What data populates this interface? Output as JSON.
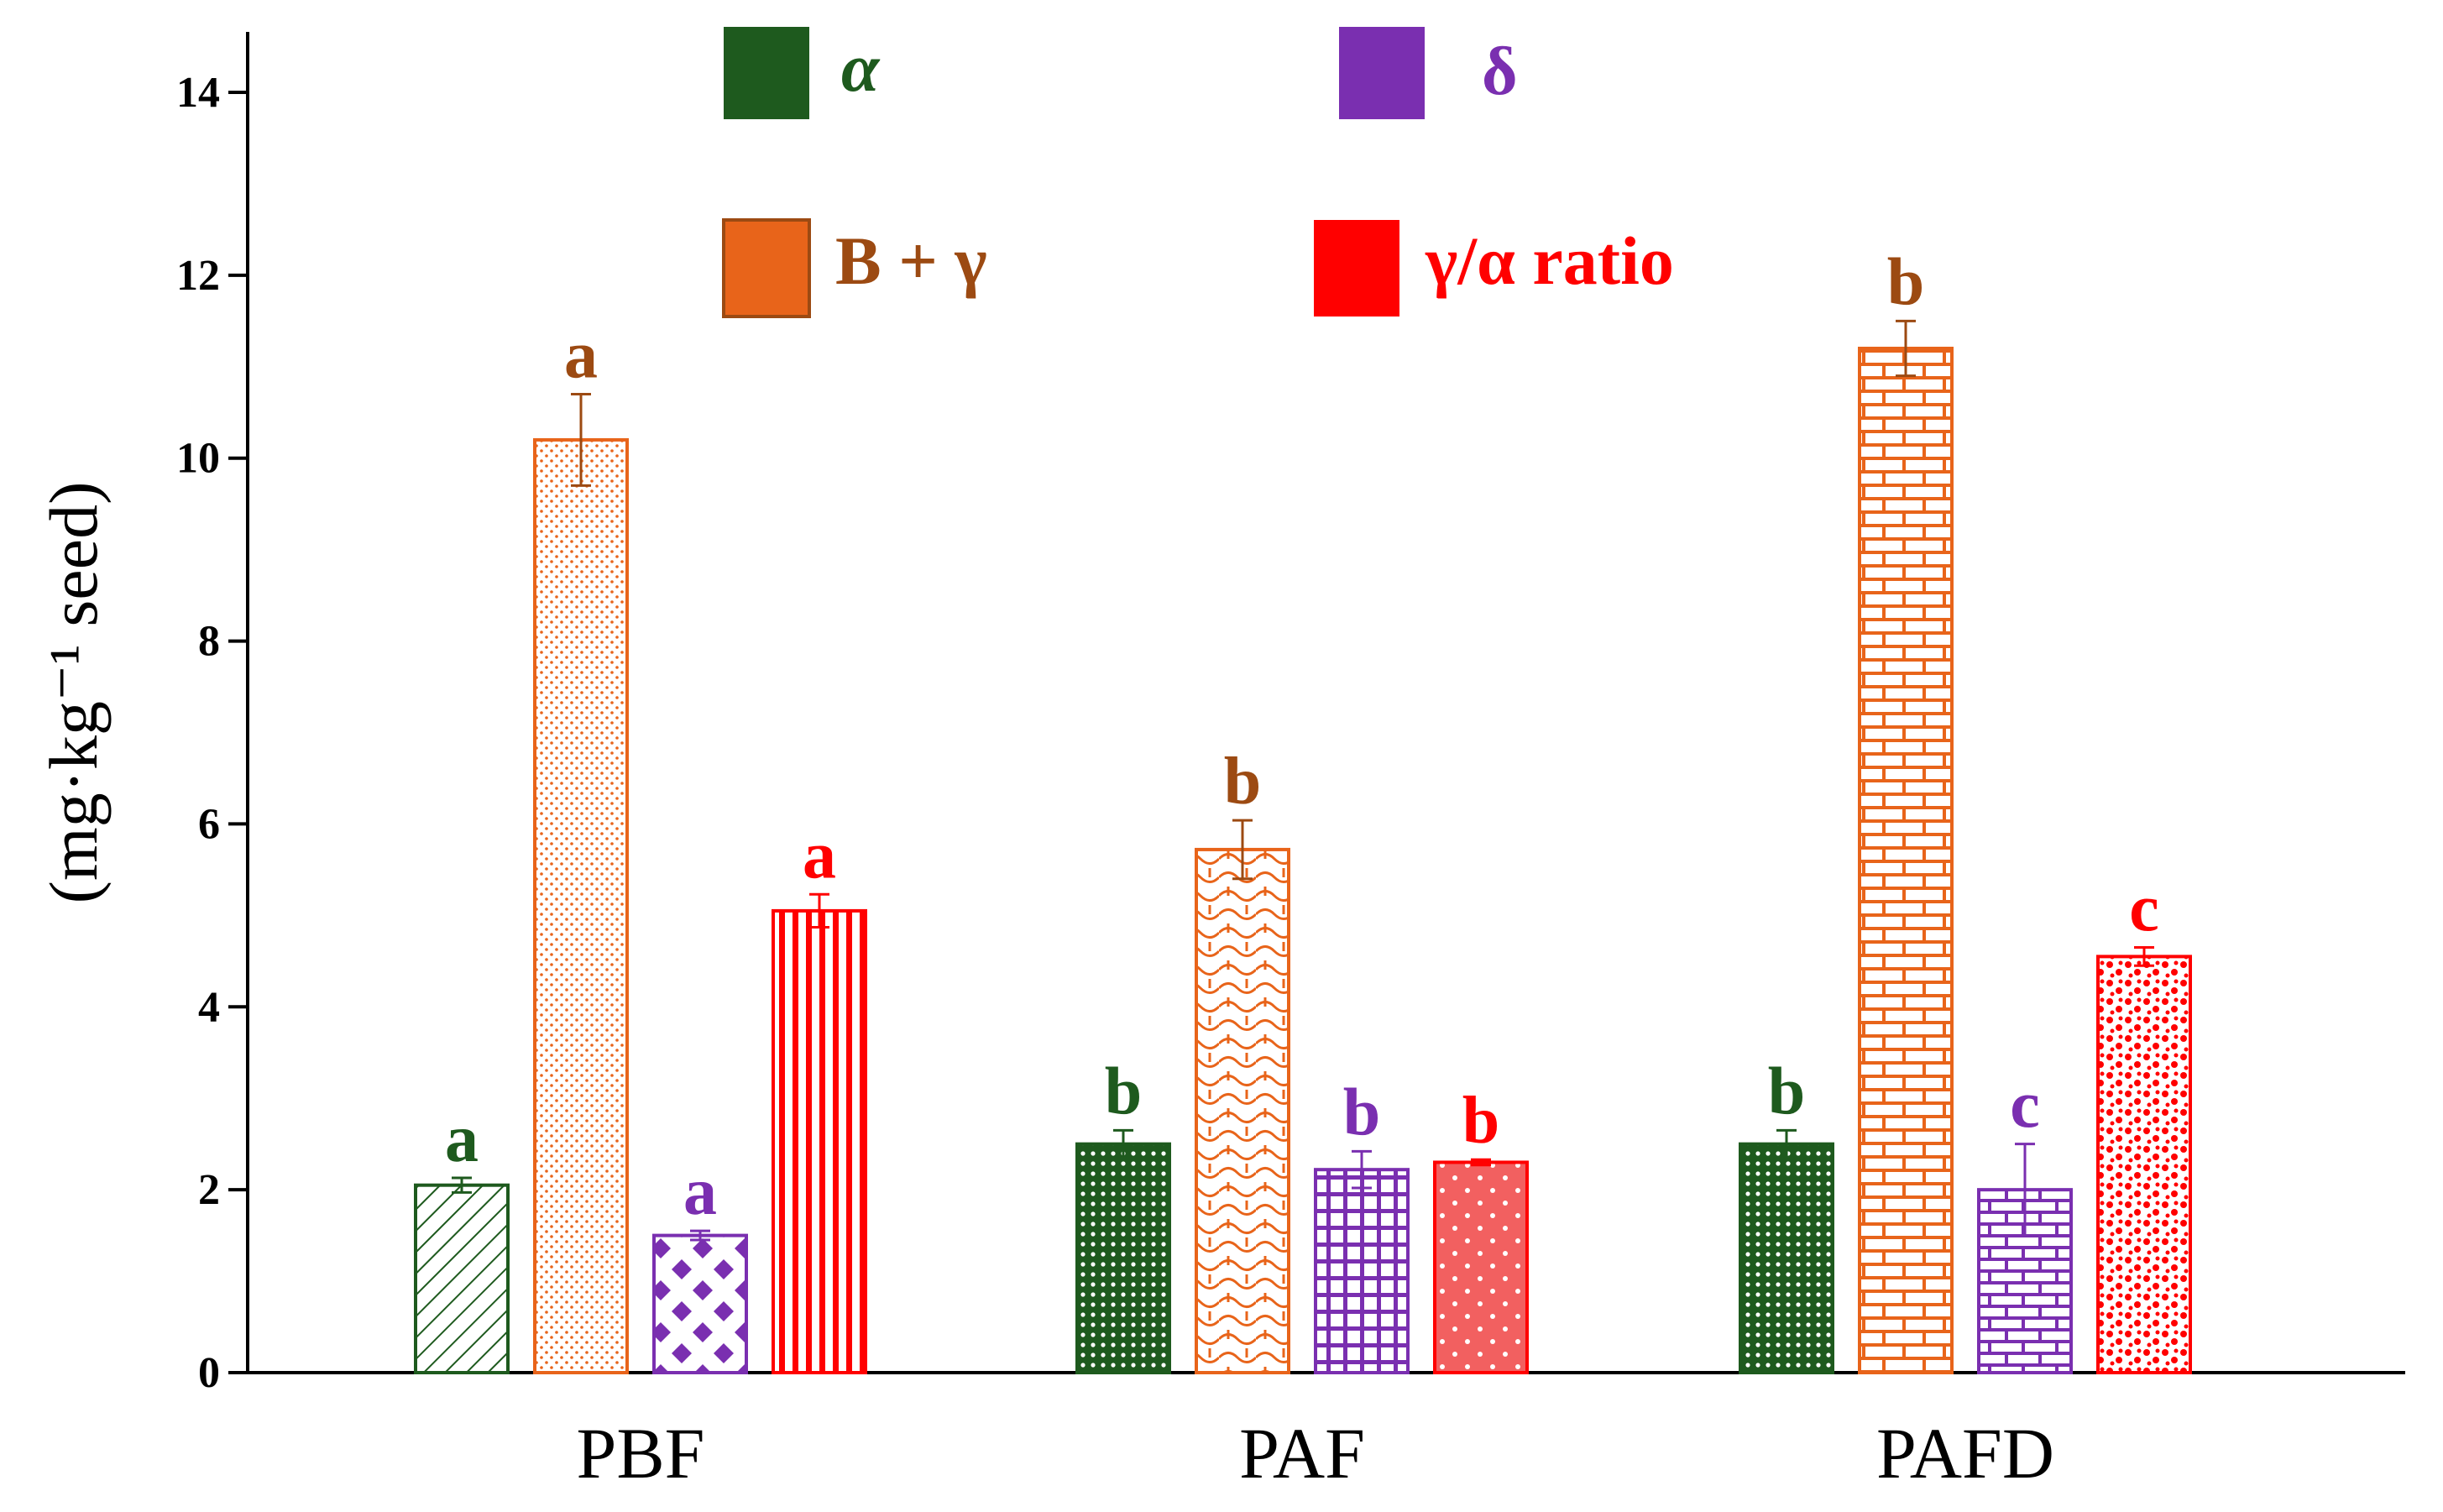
{
  "chart_data": {
    "type": "bar",
    "title": "",
    "xlabel": "",
    "ylabel": "(mg·kg⁻¹ seed)",
    "ylim": [
      0,
      14
    ],
    "yticks": [
      0,
      2,
      4,
      6,
      8,
      10,
      12,
      14
    ],
    "categories": [
      "PBF",
      "PAF",
      "PAFD"
    ],
    "legend_position": "top",
    "series": [
      {
        "name": "α",
        "color": "#1e5a1e",
        "values": [
          2.05,
          2.5,
          2.5
        ],
        "errors": [
          0.08,
          0.15,
          0.15
        ],
        "letters": [
          "a",
          "b",
          "b"
        ]
      },
      {
        "name": "B + γ",
        "color": "#e8641a",
        "label_color": "#9c4a12",
        "values": [
          10.2,
          5.72,
          11.2
        ],
        "errors": [
          0.5,
          0.32,
          0.3
        ],
        "letters": [
          "a",
          "b",
          "b"
        ]
      },
      {
        "name": "δ",
        "color": "#7a2fb0",
        "values": [
          1.5,
          2.22,
          2.0
        ],
        "errors": [
          0.05,
          0.2,
          0.5
        ],
        "letters": [
          "a",
          "b",
          "c"
        ]
      },
      {
        "name": "γ/α ratio",
        "color": "#ff0000",
        "values": [
          5.05,
          2.3,
          4.55
        ],
        "errors": [
          0.18,
          0.03,
          0.1
        ],
        "letters": [
          "a",
          "b",
          "c"
        ]
      }
    ]
  }
}
